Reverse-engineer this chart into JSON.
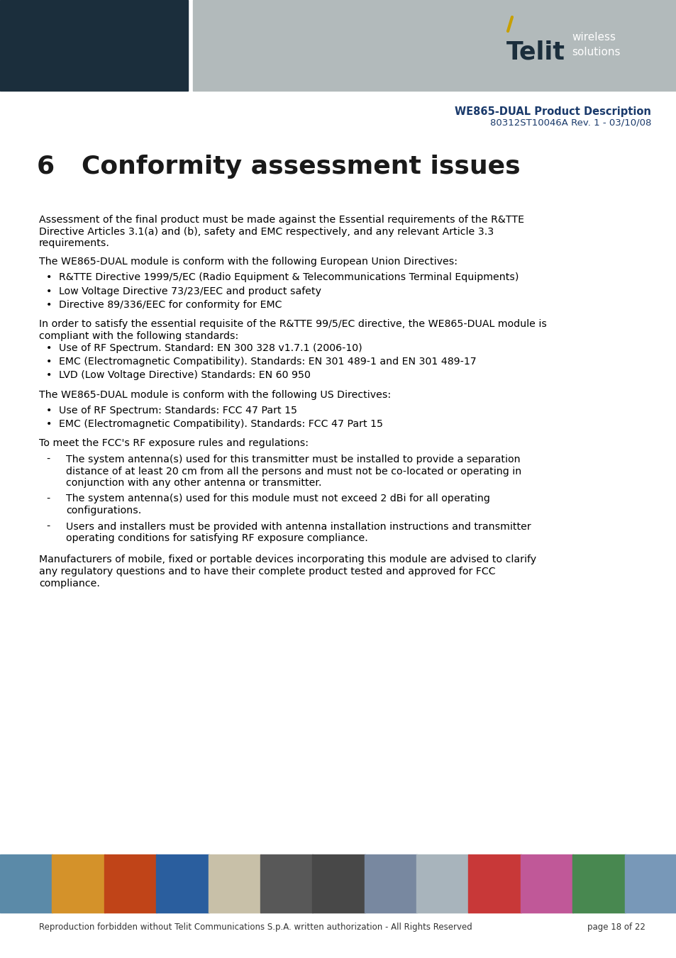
{
  "header_dark_color": "#1b2e3c",
  "header_gray_color": "#b2babb",
  "title_blue": "#1a3a6b",
  "page_bg": "#ffffff",
  "doc_title": "WE865-DUAL Product Description",
  "doc_subtitle": "80312ST10046A Rev. 1 - 03/10/08",
  "chapter_title": "6   Conformity assessment issues",
  "body_color": "#000000",
  "footer_text": "Reproduction forbidden without Telit Communications S.p.A. written authorization - All Rights Reserved",
  "footer_page": "page 18 of 22",
  "p1_lines": [
    "Assessment of the final product must be made against the Essential requirements of the R&TTE",
    "Directive Articles 3.1(a) and (b), safety and EMC respectively, and any relevant Article 3.3",
    "requirements."
  ],
  "p2": "The WE865-DUAL module is conform with the following European Union Directives:",
  "bullets1": [
    "R&TTE Directive 1999/5/EC (Radio Equipment & Telecommunications Terminal Equipments)",
    "Low Voltage Directive 73/23/EEC and product safety",
    "Directive 89/336/EEC for conformity for EMC"
  ],
  "p3_lines": [
    "In order to satisfy the essential requisite of the R&TTE 99/5/EC directive, the WE865-DUAL module is",
    "compliant with the following standards:"
  ],
  "bullets2": [
    "Use of RF Spectrum. Standard: EN 300 328 v1.7.1 (2006-10)",
    "EMC (Electromagnetic Compatibility). Standards: EN 301 489-1 and EN 301 489-17",
    "LVD (Low Voltage Directive) Standards: EN 60 950"
  ],
  "p4": "The WE865-DUAL module is conform with the following US Directives:",
  "bullets3": [
    "Use of RF Spectrum: Standards: FCC 47 Part 15",
    "EMC (Electromagnetic Compatibility). Standards: FCC 47 Part 15"
  ],
  "p5": "To meet the FCC's RF exposure rules and regulations:",
  "dash1_lines": [
    "The system antenna(s) used for this transmitter must be installed to provide a separation",
    "distance of at least 20 cm from all the persons and must not be co-located or operating in",
    "conjunction with any other antenna or transmitter."
  ],
  "dash2_lines": [
    "The system antenna(s) used for this module must not exceed 2 dBi for all operating",
    "configurations."
  ],
  "dash3_lines": [
    "Users and installers must be provided with antenna installation instructions and transmitter",
    "operating conditions for satisfying RF exposure compliance."
  ],
  "p6_lines": [
    "Manufacturers of mobile, fixed or portable devices incorporating this module are advised to clarify",
    "any regulatory questions and to have their complete product tested and approved for FCC",
    "compliance."
  ],
  "strip_colors": [
    "#5b8aa8",
    "#d4922a",
    "#c04418",
    "#2a5e9e",
    "#c8c0a8",
    "#585858",
    "#484848",
    "#7888a0",
    "#a8b4bc",
    "#c83838",
    "#c05898",
    "#488850",
    "#7898b8"
  ]
}
